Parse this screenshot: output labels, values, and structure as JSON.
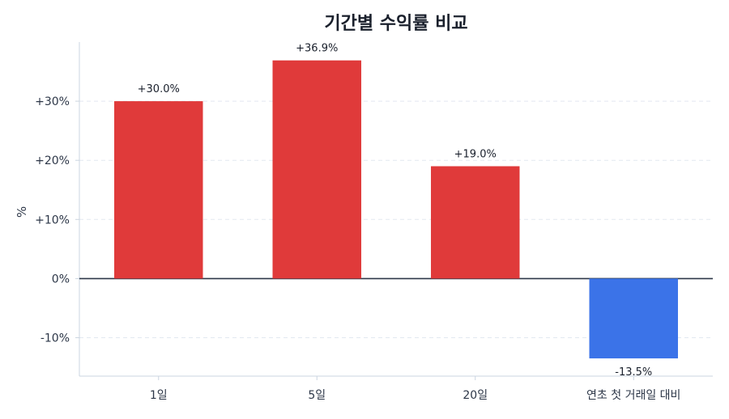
{
  "chart_data": {
    "type": "bar",
    "title": "기간별 수익률 비교",
    "xlabel": "",
    "ylabel": "%",
    "categories": [
      "1일",
      "5일",
      "20일",
      "연초 첫 거래일 대비"
    ],
    "values": [
      30.0,
      36.9,
      19.0,
      -13.5
    ],
    "data_labels": [
      "+30.0%",
      "+36.9%",
      "+19.0%",
      "-13.5%"
    ],
    "ylim": [
      -16.5,
      40
    ],
    "yticks": [
      30,
      20,
      10,
      0,
      -10
    ],
    "ytick_labels": [
      "+30%",
      "+20%",
      "+10%",
      "0%",
      "-10%"
    ],
    "grid": "horizontal-dashed",
    "colors": {
      "positive": "#e03a3a",
      "negative": "#3b73e8",
      "zero_line": "#2d3748",
      "grid": "#e2e8f0",
      "axis": "#cbd5e0",
      "text": "#2d3748",
      "title": "#1a202c"
    }
  }
}
